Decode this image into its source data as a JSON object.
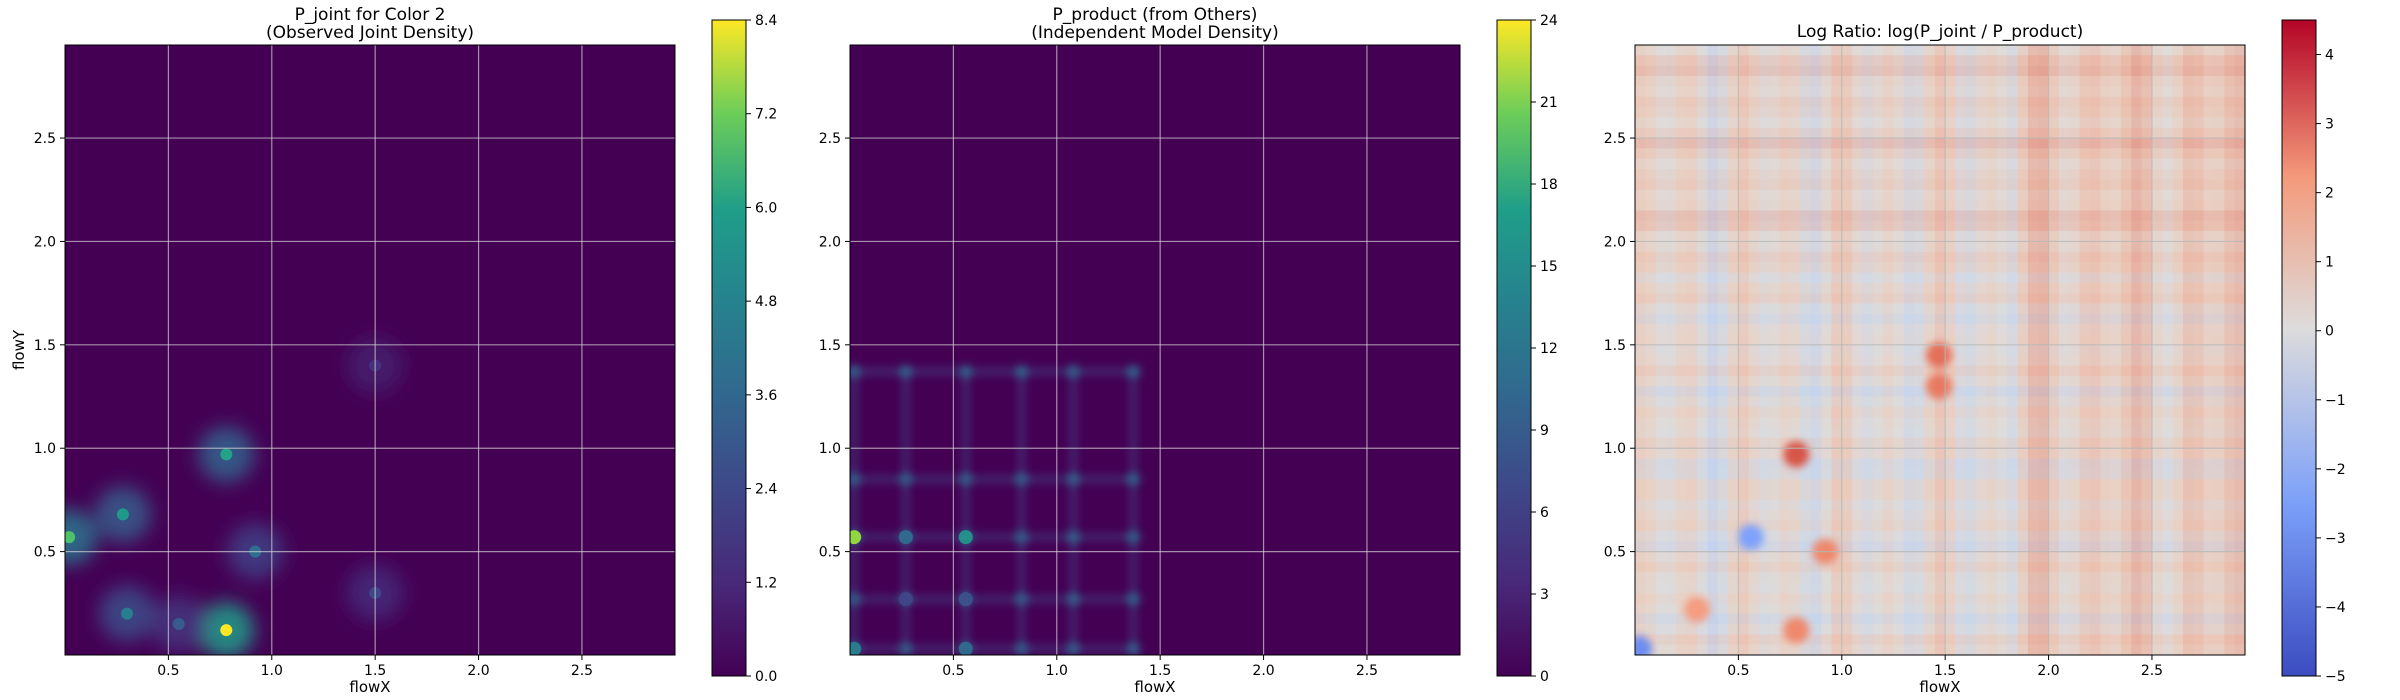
{
  "chart_data": [
    {
      "type": "heatmap",
      "title": "P_joint for Color 2",
      "subtitle": "(Observed Joint Density)",
      "xlabel": "flowX",
      "ylabel": "flowY",
      "xlim": [
        0,
        2.95
      ],
      "ylim": [
        0,
        2.95
      ],
      "xticks": [
        "0.5",
        "1.0",
        "1.5",
        "2.0",
        "2.5"
      ],
      "yticks": [
        "0.5",
        "1.0",
        "1.5",
        "2.0",
        "2.5"
      ],
      "grid": true,
      "colormap": "viridis",
      "colorbar": {
        "min": 0,
        "max": 8.4,
        "ticks": [
          "0.0",
          "1.2",
          "2.4",
          "3.6",
          "4.8",
          "6.0",
          "7.2",
          "8.4"
        ]
      },
      "hotspots": [
        {
          "x": 0.02,
          "y": 0.57,
          "z": 6.0
        },
        {
          "x": 0.28,
          "y": 0.68,
          "z": 4.5
        },
        {
          "x": 0.78,
          "y": 0.97,
          "z": 4.8
        },
        {
          "x": 0.78,
          "y": 0.12,
          "z": 8.4
        },
        {
          "x": 0.3,
          "y": 0.2,
          "z": 3.6
        },
        {
          "x": 0.92,
          "y": 0.5,
          "z": 3.0
        },
        {
          "x": 0.55,
          "y": 0.15,
          "z": 2.4
        },
        {
          "x": 1.5,
          "y": 0.3,
          "z": 1.8
        },
        {
          "x": 1.5,
          "y": 1.4,
          "z": 1.2
        }
      ]
    },
    {
      "type": "heatmap",
      "title": "P_product (from Others)",
      "subtitle": "(Independent Model Density)",
      "xlabel": "flowX",
      "ylabel": "",
      "xlim": [
        0,
        2.95
      ],
      "ylim": [
        0,
        2.95
      ],
      "xticks": [
        "0.5",
        "1.0",
        "1.5",
        "2.0",
        "2.5"
      ],
      "yticks": [
        "0.5",
        "1.0",
        "1.5",
        "2.0",
        "2.5"
      ],
      "grid": true,
      "colormap": "viridis",
      "colorbar": {
        "min": 0,
        "max": 24,
        "ticks": [
          "0",
          "3",
          "6",
          "9",
          "12",
          "15",
          "18",
          "21",
          "24"
        ]
      },
      "grid_points_x": [
        0.02,
        0.27,
        0.56,
        0.83,
        1.08,
        1.37
      ],
      "grid_points_y": [
        0.03,
        0.27,
        0.57,
        0.85,
        1.37
      ],
      "hotspots": [
        {
          "x": 0.02,
          "y": 0.57,
          "z": 20.0
        },
        {
          "x": 0.56,
          "y": 0.57,
          "z": 12.0
        },
        {
          "x": 0.27,
          "y": 0.57,
          "z": 8.0
        },
        {
          "x": 0.02,
          "y": 0.03,
          "z": 10.0
        },
        {
          "x": 0.56,
          "y": 0.03,
          "z": 8.0
        },
        {
          "x": 0.56,
          "y": 0.27,
          "z": 6.0
        },
        {
          "x": 0.27,
          "y": 0.27,
          "z": 5.0
        }
      ]
    },
    {
      "type": "heatmap",
      "title": "Log Ratio: log(P_joint / P_product)",
      "xlabel": "flowX",
      "ylabel": "",
      "xlim": [
        0,
        2.95
      ],
      "ylim": [
        0,
        2.95
      ],
      "xticks": [
        "0.5",
        "1.0",
        "1.5",
        "2.0",
        "2.5"
      ],
      "yticks": [
        "0.5",
        "1.0",
        "1.5",
        "2.0",
        "2.5"
      ],
      "grid": true,
      "colormap": "coolwarm",
      "colorbar": {
        "min": -5,
        "max": 4.5,
        "ticks": [
          "−5",
          "−4",
          "−3",
          "−2",
          "−1",
          "0",
          "1",
          "2",
          "3",
          "4"
        ]
      },
      "hotspots": [
        {
          "x": 0.78,
          "y": 0.97,
          "z": 3.5
        },
        {
          "x": 1.47,
          "y": 1.45,
          "z": 3.0
        },
        {
          "x": 1.47,
          "y": 1.3,
          "z": 2.8
        },
        {
          "x": 0.92,
          "y": 0.5,
          "z": 2.5
        },
        {
          "x": 0.78,
          "y": 0.12,
          "z": 2.5
        },
        {
          "x": 0.3,
          "y": 0.22,
          "z": 2.0
        },
        {
          "x": 0.56,
          "y": 0.57,
          "z": -3.0
        },
        {
          "x": 0.02,
          "y": 0.03,
          "z": -3.5
        }
      ]
    }
  ]
}
